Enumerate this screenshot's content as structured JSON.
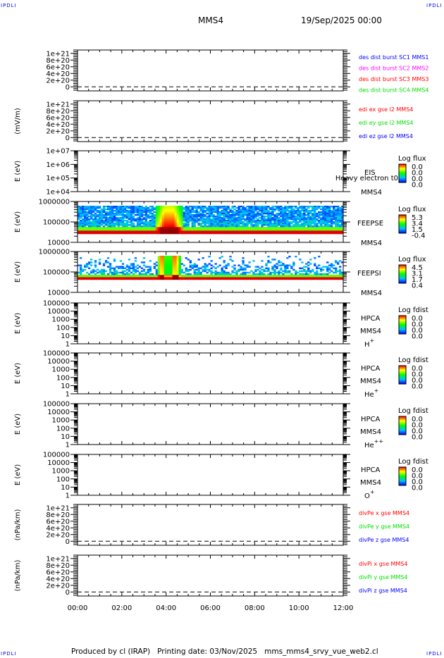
{
  "header": {
    "corner_label": "IPDLI",
    "spacecraft": "MMS4",
    "date": "19/Sep/2025 00:00"
  },
  "footer": {
    "produced_by": "Produced by cl (IRAP)",
    "printing_date": "Printing date: 03/Nov/2025",
    "filename": "mms_mms4_srvy_vue_web2.cl"
  },
  "colors": {
    "red": "#ff0000",
    "green": "#00e000",
    "blue": "#0000ff",
    "magenta": "#ff00ff"
  },
  "chart_data": {
    "type": "heatmap",
    "x_axis": {
      "range": [
        "00:00",
        "12:00"
      ],
      "tick_labels": [
        "00:00",
        "02:00",
        "04:00",
        "06:00",
        "08:00",
        "10:00",
        "12:00"
      ]
    },
    "panels": [
      {
        "type": "line",
        "ylabel": "",
        "scale": "linear",
        "ylim": [
          -1.2e+20,
          1.1e+21
        ],
        "tick_labels": [
          "0",
          "2e+20",
          "4e+20",
          "6e+20",
          "8e+20",
          "1e+21"
        ],
        "tick_values": [
          0,
          2e+20,
          4e+20,
          6e+20,
          8e+20,
          1e+21
        ],
        "zero_dashed": true,
        "legend": [
          {
            "text": "des dist burst SC1 MMS1",
            "color": "#0000ff"
          },
          {
            "text": "des dist burst SC2 MMS2",
            "color": "#ff00ff"
          },
          {
            "text": "des dist burst SC3 MMS3",
            "color": "#ff0000"
          },
          {
            "text": "des dist burst SC4 MMS4",
            "color": "#00e000"
          }
        ]
      },
      {
        "type": "line",
        "ylabel": "(mV/m)",
        "scale": "linear",
        "ylim": [
          -1.2e+20,
          1.1e+21
        ],
        "tick_labels": [
          "0",
          "2e+20",
          "4e+20",
          "6e+20",
          "8e+20",
          "1e+21"
        ],
        "tick_values": [
          0,
          2e+20,
          4e+20,
          6e+20,
          8e+20,
          1e+21
        ],
        "zero_dashed": true,
        "legend": [
          {
            "text": "edi ex gse l2 MMS4",
            "color": "#ff0000"
          },
          {
            "text": "edi ey gse l2 MMS4",
            "color": "#00e000"
          },
          {
            "text": "edi ez gse l2 MMS4",
            "color": "#0000ff"
          }
        ]
      },
      {
        "type": "spectrogram",
        "ylabel": "E (eV)",
        "scale": "log",
        "ylim": [
          10000.0,
          10000000.0
        ],
        "tick_labels": [
          "1e+04",
          "1e+05",
          "1e+06",
          "1e+07"
        ],
        "tick_values": [
          10000.0,
          100000.0,
          1000000.0,
          10000000.0
        ],
        "instrument": [
          "EIS",
          "Heavy electron t0",
          "MMS4"
        ],
        "colorbar": {
          "title": "Log flux",
          "values": [
            "0.0",
            "0.0",
            "0.0",
            "0.0"
          ]
        }
      },
      {
        "type": "spectrogram",
        "ylabel": "E (eV)",
        "scale": "log",
        "ylim": [
          10000.0,
          1000000.0
        ],
        "tick_labels": [
          "10000",
          "100000",
          "1000000"
        ],
        "tick_values": [
          10000.0,
          100000.0,
          1000000.0
        ],
        "instrument": [
          "FEEPSE",
          "MMS4"
        ],
        "colorbar": {
          "title": "Log flux",
          "values": [
            "5.3",
            "3.4",
            "1.5",
            "-0.4"
          ]
        },
        "bands": [
          {
            "emin": 26000,
            "emax": 38500,
            "level": 0.95
          },
          {
            "emin": 38500,
            "emax": 57000,
            "level": 0.6
          },
          {
            "emin": 57000,
            "emax": 620000,
            "level": 0.2,
            "sparse": 0.15
          }
        ],
        "burst": {
          "start_h": 3.5,
          "end_h": 4.77,
          "emax": 620000,
          "peak_h": 4.1
        }
      },
      {
        "type": "spectrogram",
        "ylabel": "E (eV)",
        "scale": "log",
        "ylim": [
          10000.0,
          1000000.0
        ],
        "tick_labels": [
          "10000",
          "100000",
          "1000000"
        ],
        "tick_values": [
          10000.0,
          100000.0,
          1000000.0
        ],
        "instrument": [
          "FEEPSI",
          "MMS4"
        ],
        "colorbar": {
          "title": "Log flux",
          "values": [
            "4.5",
            "3.1",
            "1.7",
            "0.4"
          ]
        },
        "bands": [
          {
            "emin": 42000,
            "emax": 57000,
            "level": 0.95
          },
          {
            "emin": 57000,
            "emax": 73000,
            "level": 0.6
          },
          {
            "emin": 73000,
            "emax": 620000,
            "level": 0.2,
            "sparse": 0.8
          }
        ],
        "burst": {
          "start_h": 3.59,
          "end_h": 4.67,
          "emax": 600000,
          "peak_h": 4.1,
          "double": true
        }
      },
      {
        "type": "spectrogram",
        "ylabel": "E (eV)",
        "scale": "log",
        "ylim": [
          1,
          100000.0
        ],
        "tick_labels": [
          "1",
          "10",
          "100",
          "1000",
          "10000",
          "100000"
        ],
        "tick_values": [
          1,
          10,
          100,
          1000,
          10000,
          100000
        ],
        "instrument": [
          "HPCA",
          "MMS4",
          "H",
          "+"
        ],
        "colorbar": {
          "title": "Log fdist",
          "values": [
            "0.0",
            "0.0",
            "0.0",
            "0.0"
          ]
        }
      },
      {
        "type": "spectrogram",
        "ylabel": "E (eV)",
        "scale": "log",
        "ylim": [
          1,
          100000.0
        ],
        "tick_labels": [
          "1",
          "10",
          "100",
          "1000",
          "10000",
          "100000"
        ],
        "tick_values": [
          1,
          10,
          100,
          1000,
          10000,
          100000
        ],
        "instrument": [
          "HPCA",
          "MMS4",
          "He",
          "+"
        ],
        "colorbar": {
          "title": "Log fdist",
          "values": [
            "0.0",
            "0.0",
            "0.0",
            "0.0"
          ]
        }
      },
      {
        "type": "spectrogram",
        "ylabel": "E (eV)",
        "scale": "log",
        "ylim": [
          1,
          100000.0
        ],
        "tick_labels": [
          "1",
          "10",
          "100",
          "1000",
          "10000",
          "100000"
        ],
        "tick_values": [
          1,
          10,
          100,
          1000,
          10000,
          100000
        ],
        "instrument": [
          "HPCA",
          "MMS4",
          "He",
          "++"
        ],
        "colorbar": {
          "title": "Log fdist",
          "values": [
            "0.0",
            "0.0",
            "0.0",
            "0.0"
          ]
        }
      },
      {
        "type": "spectrogram",
        "ylabel": "E (eV)",
        "scale": "log",
        "ylim": [
          1,
          100000.0
        ],
        "tick_labels": [
          "1",
          "10",
          "100",
          "1000",
          "10000",
          "100000"
        ],
        "tick_values": [
          1,
          10,
          100,
          1000,
          10000,
          100000
        ],
        "instrument": [
          "HPCA",
          "MMS4",
          "O",
          "+"
        ],
        "colorbar": {
          "title": "Log fdist",
          "values": [
            "0.0",
            "0.0",
            "0.0",
            "0.0"
          ]
        }
      },
      {
        "type": "line",
        "ylabel": "(nPa/km)",
        "scale": "linear",
        "ylim": [
          -1.2e+20,
          1.1e+21
        ],
        "tick_labels": [
          "0",
          "2e+20",
          "4e+20",
          "6e+20",
          "8e+20",
          "1e+21"
        ],
        "tick_values": [
          0,
          2e+20,
          4e+20,
          6e+20,
          8e+20,
          1e+21
        ],
        "zero_dashed": true,
        "legend": [
          {
            "text": "divPe x gse MMS4",
            "color": "#ff0000"
          },
          {
            "text": "divPe y gse MMS4",
            "color": "#00e000"
          },
          {
            "text": "divPe z gse MMS4",
            "color": "#0000ff"
          }
        ]
      },
      {
        "type": "line",
        "ylabel": "(nPa/km)",
        "scale": "linear",
        "ylim": [
          -1.2e+20,
          1.1e+21
        ],
        "tick_labels": [
          "0",
          "2e+20",
          "4e+20",
          "6e+20",
          "8e+20",
          "1e+21"
        ],
        "tick_values": [
          0,
          2e+20,
          4e+20,
          6e+20,
          8e+20,
          1e+21
        ],
        "zero_dashed": true,
        "legend": [
          {
            "text": "divPi x gse MMS4",
            "color": "#ff0000"
          },
          {
            "text": "divPi y gse MMS4",
            "color": "#00e000"
          },
          {
            "text": "divPi z gse MMS4",
            "color": "#0000ff"
          }
        ]
      }
    ]
  }
}
